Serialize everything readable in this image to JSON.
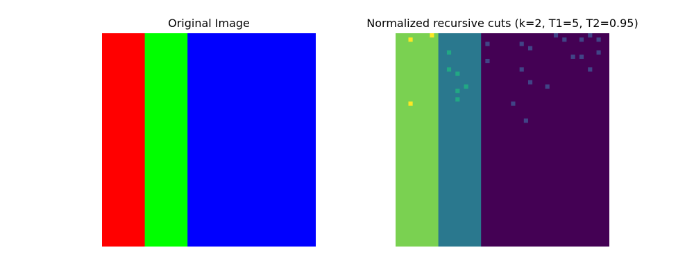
{
  "figure": {
    "left_title": "Original Image",
    "right_title": "Normalized recursive cuts (k=2, T1=5, T2=0.95)"
  },
  "original_image": {
    "grid_cols": 50,
    "grid_rows": 50,
    "bands": [
      {
        "label": "red",
        "color": "#ff0000",
        "col_start": 0,
        "col_end": 10
      },
      {
        "label": "green",
        "color": "#00ff00",
        "col_start": 10,
        "col_end": 20
      },
      {
        "label": "blue",
        "color": "#0000ff",
        "col_start": 20,
        "col_end": 50
      }
    ]
  },
  "segmentation": {
    "grid_cols": 50,
    "grid_rows": 50,
    "bands": [
      {
        "label": "segment-green",
        "color": "#7ad151",
        "col_start": 0,
        "col_end": 10
      },
      {
        "label": "segment-teal",
        "color": "#2a788e",
        "col_start": 10,
        "col_end": 20
      },
      {
        "label": "segment-purple",
        "color": "#440154",
        "col_start": 20,
        "col_end": 50
      }
    ],
    "outlier_pixels": [
      {
        "col": 3,
        "row": 1,
        "color": "#fde725"
      },
      {
        "col": 8,
        "row": 0,
        "color": "#fde725"
      },
      {
        "col": 3,
        "row": 16,
        "color": "#fde725"
      },
      {
        "col": 12,
        "row": 4,
        "color": "#22a884"
      },
      {
        "col": 12,
        "row": 8,
        "color": "#22a884"
      },
      {
        "col": 14,
        "row": 9,
        "color": "#22a884"
      },
      {
        "col": 16,
        "row": 12,
        "color": "#22a884"
      },
      {
        "col": 14,
        "row": 13,
        "color": "#22a884"
      },
      {
        "col": 14,
        "row": 15,
        "color": "#22a884"
      },
      {
        "col": 21,
        "row": 2,
        "color": "#414487"
      },
      {
        "col": 21,
        "row": 6,
        "color": "#414487"
      },
      {
        "col": 29,
        "row": 2,
        "color": "#414487"
      },
      {
        "col": 31,
        "row": 3,
        "color": "#414487"
      },
      {
        "col": 29,
        "row": 8,
        "color": "#414487"
      },
      {
        "col": 31,
        "row": 11,
        "color": "#414487"
      },
      {
        "col": 35,
        "row": 12,
        "color": "#414487"
      },
      {
        "col": 27,
        "row": 16,
        "color": "#414487"
      },
      {
        "col": 30,
        "row": 20,
        "color": "#414487"
      },
      {
        "col": 37,
        "row": 0,
        "color": "#414487"
      },
      {
        "col": 39,
        "row": 1,
        "color": "#414487"
      },
      {
        "col": 43,
        "row": 1,
        "color": "#414487"
      },
      {
        "col": 45,
        "row": 0,
        "color": "#414487"
      },
      {
        "col": 47,
        "row": 1,
        "color": "#414487"
      },
      {
        "col": 41,
        "row": 5,
        "color": "#414487"
      },
      {
        "col": 43,
        "row": 5,
        "color": "#414487"
      },
      {
        "col": 47,
        "row": 4,
        "color": "#414487"
      },
      {
        "col": 45,
        "row": 8,
        "color": "#414487"
      }
    ]
  }
}
